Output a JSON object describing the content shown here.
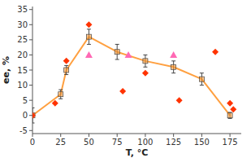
{
  "chart_data": {
    "type": "line",
    "xlabel": "T, °C",
    "ylabel": "ee, %",
    "xlim": [
      0,
      185
    ],
    "ylim": [
      -6,
      36
    ],
    "xticks": [
      0,
      25,
      50,
      75,
      100,
      125,
      150,
      175
    ],
    "yticks": [
      -5,
      0,
      5,
      10,
      15,
      20,
      25,
      30,
      35
    ],
    "series": [
      {
        "type": "line",
        "marker": "square",
        "color": "#FFA040",
        "x": [
          0,
          25,
          30,
          50,
          75,
          100,
          125,
          150,
          175
        ],
        "values": [
          0,
          7,
          15,
          26,
          21,
          18,
          16,
          12,
          0
        ],
        "errors": [
          2.5,
          1.5,
          1.5,
          2.5,
          2.5,
          2.0,
          2.0,
          2.0,
          1.0
        ]
      },
      {
        "type": "scatter",
        "marker": "diamond",
        "color": "#FF3300",
        "x": [
          0,
          20,
          30,
          50,
          80,
          100,
          130,
          162,
          175,
          178
        ],
        "values": [
          0,
          4.0,
          18,
          30,
          8,
          14,
          5,
          21,
          4,
          2
        ]
      },
      {
        "type": "scatter",
        "marker": "triangle",
        "color": "#FF69B4",
        "x": [
          50,
          85,
          125
        ],
        "values": [
          20,
          20,
          20
        ]
      }
    ]
  }
}
